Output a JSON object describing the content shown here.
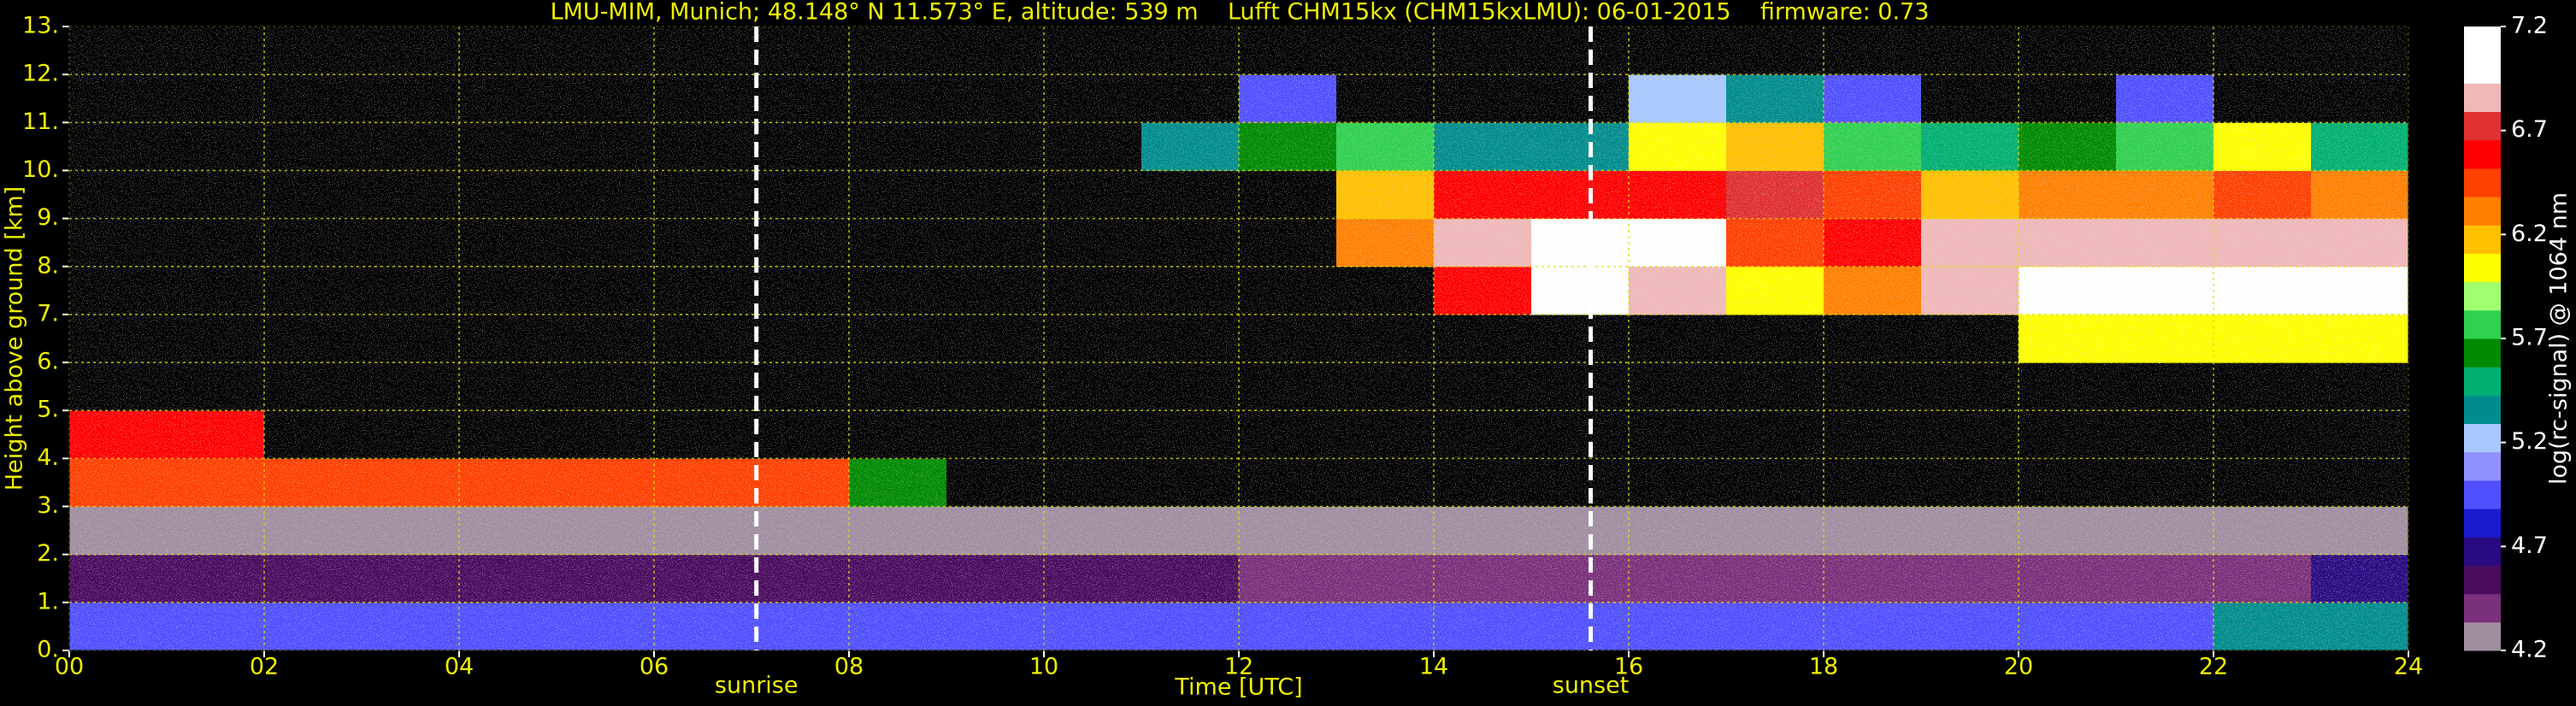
{
  "chart_data": {
    "type": "heatmap",
    "title": "LMU-MIM, Munich; 48.148° N 11.573° E, altitude: 539 m    Lufft CHM15kx (CHM15kxLMU): 06-01-2015    firmware: 0.73",
    "x_label": "Time [UTC]",
    "y_label": "Height above ground [km]",
    "colorbar_label": "log(rc-signal) @ 1064 nm",
    "xlim": [
      0,
      24
    ],
    "ylim": [
      0,
      13
    ],
    "xticks": [
      {
        "value": 0,
        "label": "00"
      },
      {
        "value": 2,
        "label": "02"
      },
      {
        "value": 4,
        "label": "04"
      },
      {
        "value": 6,
        "label": "06"
      },
      {
        "value": 8,
        "label": "08"
      },
      10,
      12,
      14,
      16,
      18,
      20,
      22,
      24
    ],
    "yticks": [
      {
        "value": 0,
        "label": "0."
      },
      {
        "value": 1,
        "label": "1."
      },
      {
        "value": 2,
        "label": "2."
      },
      {
        "value": 3,
        "label": "3."
      },
      {
        "value": 4,
        "label": "4."
      },
      {
        "value": 5,
        "label": "5."
      },
      {
        "value": 6,
        "label": "6."
      },
      {
        "value": 7,
        "label": "7."
      },
      {
        "value": 8,
        "label": "8."
      },
      {
        "value": 9,
        "label": "9."
      },
      {
        "value": 10,
        "label": "10."
      },
      {
        "value": 11,
        "label": "11."
      },
      {
        "value": 12,
        "label": "12."
      },
      {
        "value": 13,
        "label": "13."
      }
    ],
    "grid": true,
    "clim": [
      4.2,
      7.2
    ],
    "cticks": [
      4.2,
      4.7,
      5.2,
      5.7,
      6.2,
      6.7,
      7.2
    ],
    "colormap": [
      "#a08ea0",
      "#7a307a",
      "#4a0c5e",
      "#2a0a80",
      "#1a1ad0",
      "#5050ff",
      "#9090ff",
      "#a8c8ff",
      "#008c8c",
      "#00b070",
      "#008a00",
      "#30d050",
      "#a0ff70",
      "#ffff00",
      "#ffc000",
      "#ff8000",
      "#ff4000",
      "#ff0000",
      "#e03030",
      "#f0b8b8",
      "#ffffff",
      "#ffffff"
    ],
    "under_color": "#000000",
    "annotations": [
      {
        "text": "sunrise",
        "x": 7.05
      },
      {
        "text": "sunset",
        "x": 15.61
      }
    ],
    "x": [
      0.5,
      1.5,
      2.5,
      3.5,
      4.5,
      5.5,
      6.5,
      7.5,
      8.5,
      9.5,
      10.5,
      11.5,
      12.5,
      13.5,
      14.5,
      15.5,
      16.5,
      17.5,
      18.5,
      19.5,
      20.5,
      21.5,
      22.5,
      23.5
    ],
    "y": [
      0.5,
      1.5,
      2.5,
      3.5,
      4.5,
      5.5,
      6.5,
      7.5,
      8.5,
      9.5,
      10.5,
      11.5,
      12.5
    ],
    "z": [
      [
        4.9,
        4.9,
        4.9,
        4.9,
        4.9,
        4.9,
        4.9,
        4.9,
        4.9,
        4.9,
        4.9,
        4.9,
        4.9,
        4.9,
        4.9,
        4.9,
        4.9,
        4.9,
        4.9,
        4.9,
        4.9,
        4.9,
        5.3,
        5.3
      ],
      [
        4.5,
        4.5,
        4.5,
        4.5,
        4.5,
        4.5,
        4.5,
        4.5,
        4.5,
        4.5,
        4.5,
        4.5,
        4.4,
        4.4,
        4.4,
        4.4,
        4.4,
        4.4,
        4.4,
        4.4,
        4.4,
        4.4,
        4.4,
        4.7
      ],
      [
        4.3,
        4.3,
        4.3,
        4.3,
        4.3,
        4.3,
        4.3,
        4.3,
        4.3,
        4.3,
        4.3,
        4.3,
        4.3,
        4.3,
        4.3,
        4.3,
        4.3,
        4.3,
        4.3,
        4.3,
        4.3,
        4.3,
        4.3,
        4.3
      ],
      [
        6.5,
        6.5,
        6.5,
        6.5,
        6.5,
        6.5,
        6.5,
        6.5,
        5.6,
        4.0,
        4.0,
        4.0,
        4.0,
        4.0,
        4.0,
        4.0,
        4.0,
        4.0,
        4.0,
        4.0,
        4.0,
        4.0,
        4.0,
        4.0
      ],
      [
        6.6,
        6.6,
        4.0,
        4.0,
        4.0,
        4.0,
        4.0,
        4.0,
        4.0,
        4.0,
        4.0,
        4.0,
        4.0,
        4.0,
        4.0,
        4.0,
        4.0,
        4.0,
        4.0,
        4.0,
        4.0,
        4.0,
        4.0,
        4.0
      ],
      [
        4.0,
        4.0,
        4.0,
        4.0,
        4.0,
        4.0,
        4.0,
        4.0,
        4.0,
        4.0,
        4.0,
        4.0,
        4.0,
        4.0,
        4.0,
        4.0,
        4.0,
        4.0,
        4.0,
        4.0,
        4.0,
        4.0,
        4.0,
        4.0
      ],
      [
        4.0,
        4.0,
        4.0,
        4.0,
        4.0,
        4.0,
        4.0,
        4.0,
        4.0,
        4.0,
        4.0,
        4.0,
        4.0,
        4.0,
        4.0,
        4.0,
        4.0,
        4.0,
        4.0,
        4.0,
        6.0,
        6.0,
        6.0,
        6.0
      ],
      [
        4.0,
        4.0,
        4.0,
        4.0,
        4.0,
        4.0,
        4.0,
        4.0,
        4.0,
        4.0,
        4.0,
        4.0,
        4.0,
        4.0,
        6.6,
        7.0,
        6.9,
        6.0,
        6.3,
        6.8,
        7.0,
        7.0,
        7.0,
        7.0
      ],
      [
        4.0,
        4.0,
        4.0,
        4.0,
        4.0,
        4.0,
        4.0,
        4.0,
        4.0,
        4.0,
        4.0,
        4.0,
        4.0,
        6.3,
        6.9,
        7.0,
        7.0,
        6.5,
        6.6,
        6.8,
        6.9,
        6.9,
        6.9,
        6.8
      ],
      [
        4.0,
        4.0,
        4.0,
        4.0,
        4.0,
        4.0,
        4.0,
        4.0,
        4.0,
        4.0,
        4.0,
        4.0,
        4.0,
        6.2,
        6.6,
        6.6,
        6.6,
        6.7,
        6.4,
        6.2,
        6.3,
        6.3,
        6.4,
        6.3
      ],
      [
        4.0,
        4.0,
        4.0,
        4.0,
        4.0,
        4.0,
        4.0,
        4.0,
        4.0,
        4.0,
        4.0,
        5.4,
        5.6,
        5.8,
        5.4,
        5.3,
        6.0,
        6.2,
        5.8,
        5.5,
        5.6,
        5.7,
        6.0,
        5.5
      ],
      [
        4.0,
        4.0,
        4.0,
        4.0,
        4.0,
        4.0,
        4.0,
        4.0,
        4.0,
        4.0,
        4.0,
        4.0,
        5.0,
        4.0,
        4.0,
        4.0,
        5.2,
        5.3,
        5.0,
        4.0,
        4.0,
        5.0,
        4.0,
        4.0
      ],
      [
        4.0,
        4.0,
        4.0,
        4.0,
        4.0,
        4.0,
        4.0,
        4.0,
        4.0,
        4.0,
        4.0,
        4.0,
        4.0,
        4.0,
        4.0,
        4.0,
        4.0,
        4.0,
        4.0,
        4.0,
        4.0,
        4.0,
        4.0,
        4.0
      ]
    ]
  }
}
